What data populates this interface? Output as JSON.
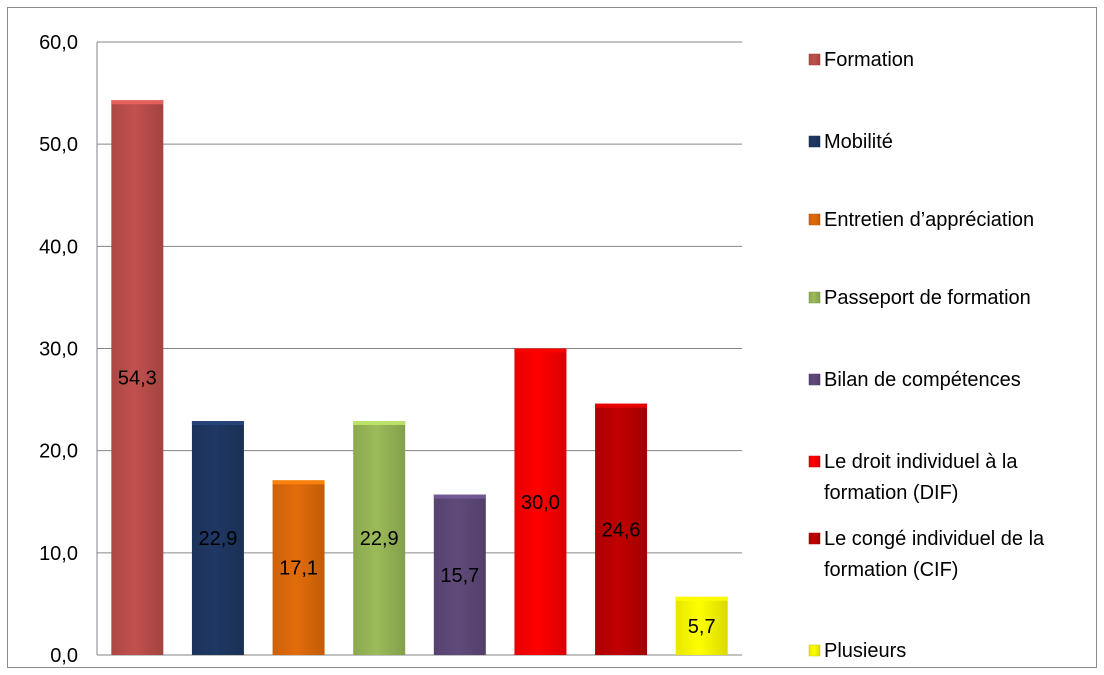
{
  "chart_data": {
    "type": "bar",
    "categories": [
      "Formation",
      "Mobilité",
      "Entretien d’appréciation",
      "Passeport de formation",
      "Bilan de compétences",
      "Le droit individuel à la formation (DIF)",
      "Le congé individuel de la formation (CIF)",
      "Plusieurs"
    ],
    "values": [
      54.3,
      22.9,
      17.1,
      22.9,
      15.7,
      30.0,
      24.6,
      5.7
    ],
    "data_labels": [
      "54,3",
      "22,9",
      "17,1",
      "22,9",
      "15,7",
      "30,0",
      "24,6",
      "5,7"
    ],
    "colors": [
      "#c0504d",
      "#1f3864",
      "#e36c0a",
      "#9bbb59",
      "#604a7b",
      "#ff0000",
      "#c00000",
      "#ffff00"
    ],
    "legend": [
      [
        "Formation"
      ],
      [
        "Mobilité"
      ],
      [
        "Entretien d’appréciation"
      ],
      [
        "Passeport de formation"
      ],
      [
        "Bilan de compétences"
      ],
      [
        "Le droit individuel à la",
        "formation (DIF)"
      ],
      [
        "Le congé individuel de la",
        "formation (CIF)"
      ],
      [
        "Plusieurs"
      ]
    ],
    "yticks": [
      "0,0",
      "10,0",
      "20,0",
      "30,0",
      "40,0",
      "50,0",
      "60,0"
    ],
    "ylim": [
      0,
      60
    ],
    "grid": true,
    "legend_position": "right"
  }
}
